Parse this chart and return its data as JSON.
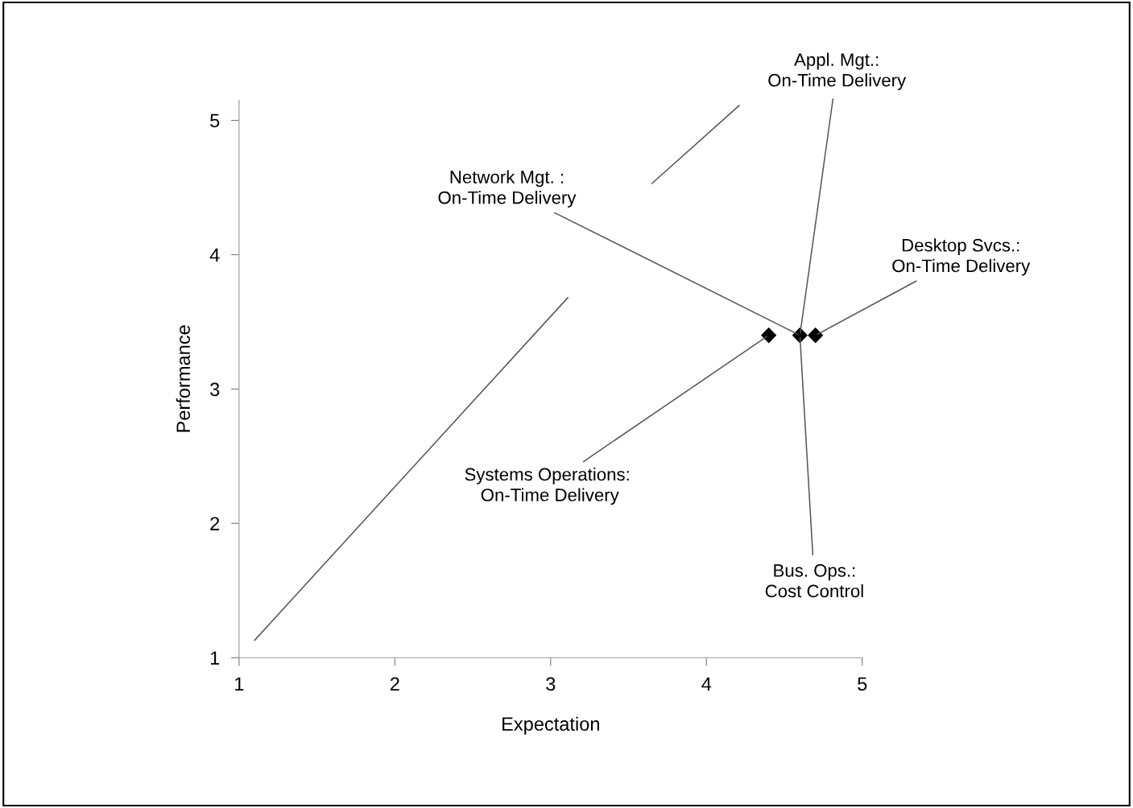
{
  "chart_data": {
    "type": "scatter",
    "xlabel": "Expectation",
    "ylabel": "Performance",
    "xlim": [
      1,
      5
    ],
    "ylim": [
      1,
      5.15
    ],
    "xticks": [
      1,
      2,
      3,
      4,
      5
    ],
    "yticks": [
      1,
      2,
      3,
      4,
      5
    ],
    "grid": false,
    "legend": false,
    "marker": "diamond",
    "series": [
      {
        "color": "#000000",
        "x": [
          4.4,
          4.6,
          4.7
        ],
        "values": [
          3.4,
          3.4,
          3.4
        ]
      },
      {
        "type": "line",
        "color": "#555555",
        "line_style": "solid",
        "marker": "none",
        "x": [
          1.1,
          3.11,
          3.35,
          3.65,
          4.21
        ],
        "values": [
          1.13,
          3.68,
          null,
          4.53,
          5.11
        ]
      }
    ],
    "annotations": [
      {
        "text": "Network Mgt. :\nOn-Time Delivery",
        "x": 4.6,
        "y": 3.4
      },
      {
        "text": "Appl. Mgt.:\nOn-Time Delivery",
        "x": 4.6,
        "y": 3.4
      },
      {
        "text": "Desktop Svcs.:\nOn-Time Delivery",
        "x": 4.7,
        "y": 3.4
      },
      {
        "text": "Systems Operations:\n On-Time Delivery",
        "x": 4.4,
        "y": 3.4
      },
      {
        "text": "Bus. Ops.:\nCost Control",
        "x": 4.6,
        "y": 3.4
      }
    ]
  }
}
